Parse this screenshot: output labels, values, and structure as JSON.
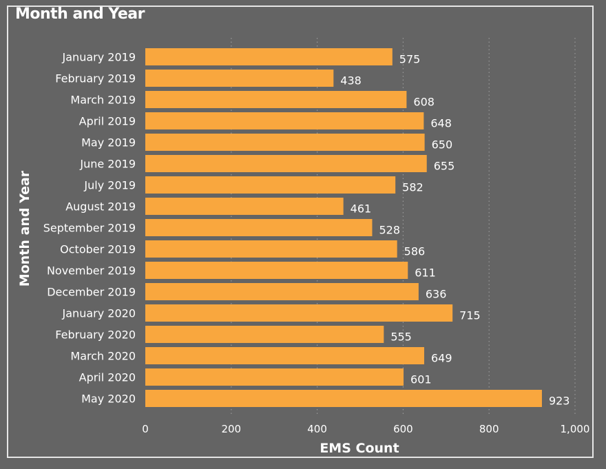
{
  "visual": {
    "title": "Month and Year"
  },
  "colors": {
    "background": "#646464",
    "bar": "#f9a73e",
    "text": "#ffffff",
    "gridline": "#9a9a9a"
  },
  "chart_data": {
    "type": "bar",
    "orientation": "horizontal",
    "title": "Month and Year",
    "xlabel": "EMS Count",
    "ylabel": "Month and Year",
    "xlim": [
      0,
      1000
    ],
    "x_ticks": [
      0,
      200,
      400,
      600,
      800,
      1000
    ],
    "x_tick_labels": [
      "0",
      "200",
      "400",
      "600",
      "800",
      "1,000"
    ],
    "grid": true,
    "data_labels": true,
    "categories": [
      "January 2019",
      "February 2019",
      "March 2019",
      "April 2019",
      "May 2019",
      "June 2019",
      "July 2019",
      "August 2019",
      "September 2019",
      "October 2019",
      "November 2019",
      "December 2019",
      "January 2020",
      "February 2020",
      "March 2020",
      "April 2020",
      "May 2020"
    ],
    "values": [
      575,
      438,
      608,
      648,
      650,
      655,
      582,
      461,
      528,
      586,
      611,
      636,
      715,
      555,
      649,
      601,
      923
    ]
  }
}
